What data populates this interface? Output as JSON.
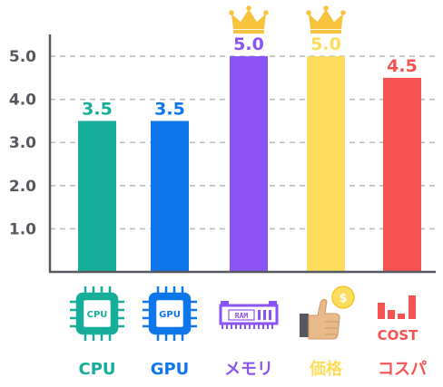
{
  "chart_data": {
    "type": "bar",
    "categories": [
      "CPU",
      "GPU",
      "メモリ",
      "価格",
      "コスパ"
    ],
    "values": [
      3.5,
      3.5,
      5.0,
      5.0,
      4.5
    ],
    "value_labels": [
      "3.5",
      "3.5",
      "5.0",
      "5.0",
      "4.5"
    ],
    "yticks": [
      "1.0",
      "2.0",
      "3.0",
      "4.0",
      "5.0"
    ],
    "ylim": [
      0,
      5.8
    ],
    "grid": true,
    "colors": [
      "#17ad9b",
      "#0d76ea",
      "#8b52f4",
      "#fedd5c",
      "#f55252"
    ],
    "crowned": [
      false,
      false,
      true,
      true,
      false
    ],
    "icons": [
      "cpu-chip-icon",
      "gpu-chip-icon",
      "ram-module-icon",
      "thumbs-up-coin-icon",
      "cost-bars-icon"
    ],
    "icon_texts": {
      "cpu": "CPU",
      "gpu": "GPU",
      "ram": "RAM",
      "cost": "COST",
      "coin": "$"
    }
  }
}
